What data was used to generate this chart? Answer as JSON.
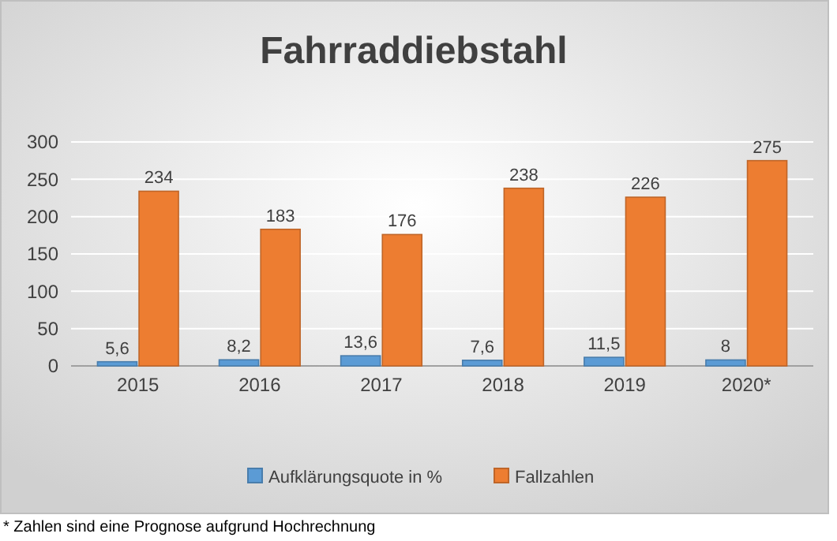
{
  "chart_data": {
    "type": "bar",
    "title": "Fahrraddiebstahl",
    "categories": [
      "2015",
      "2016",
      "2017",
      "2018",
      "2019",
      "2020*"
    ],
    "series": [
      {
        "name": "Aufklärungsquote in %",
        "color": "#5b9bd5",
        "values": [
          5.6,
          8.2,
          13.6,
          7.6,
          11.5,
          8
        ],
        "value_labels": [
          "5,6",
          "8,2",
          "13,6",
          "7,6",
          "11,5",
          "8"
        ]
      },
      {
        "name": "Fallzahlen",
        "color": "#ed7d31",
        "values": [
          234,
          183,
          176,
          238,
          226,
          275
        ],
        "value_labels": [
          "234",
          "183",
          "176",
          "238",
          "226",
          "275"
        ]
      }
    ],
    "ylim": [
      0,
      300
    ],
    "yticks": [
      0,
      50,
      100,
      150,
      200,
      250,
      300
    ],
    "grid": "y",
    "legend": "bottom",
    "annotations": [
      "* Zahlen sind eine Prognose aufgrund Hochrechnung"
    ]
  }
}
